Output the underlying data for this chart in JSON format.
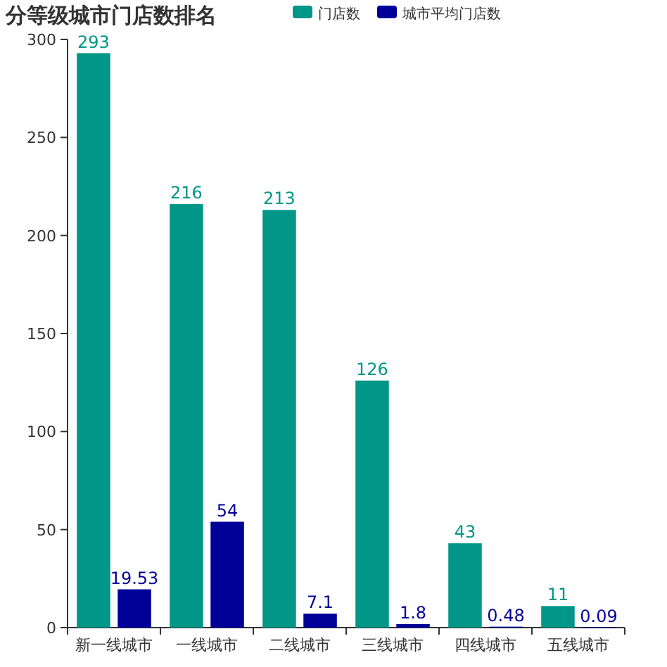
{
  "chart_data": {
    "type": "bar",
    "title": "分等级城市门店数排名",
    "categories": [
      "新一线城市",
      "一线城市",
      "二线城市",
      "三线城市",
      "四线城市",
      "五线城市"
    ],
    "series": [
      {
        "name": "门店数",
        "color": "#009688",
        "values": [
          293,
          216,
          213,
          126,
          43,
          11
        ]
      },
      {
        "name": "城市平均门店数",
        "color": "#000099",
        "values": [
          19.53,
          54,
          7.1,
          1.8,
          0.48,
          0.09
        ]
      }
    ],
    "ylim": [
      0,
      300
    ],
    "yticks": [
      0,
      50,
      100,
      150,
      200,
      250,
      300
    ],
    "data_labels": true,
    "legend": "top",
    "grid": false
  }
}
